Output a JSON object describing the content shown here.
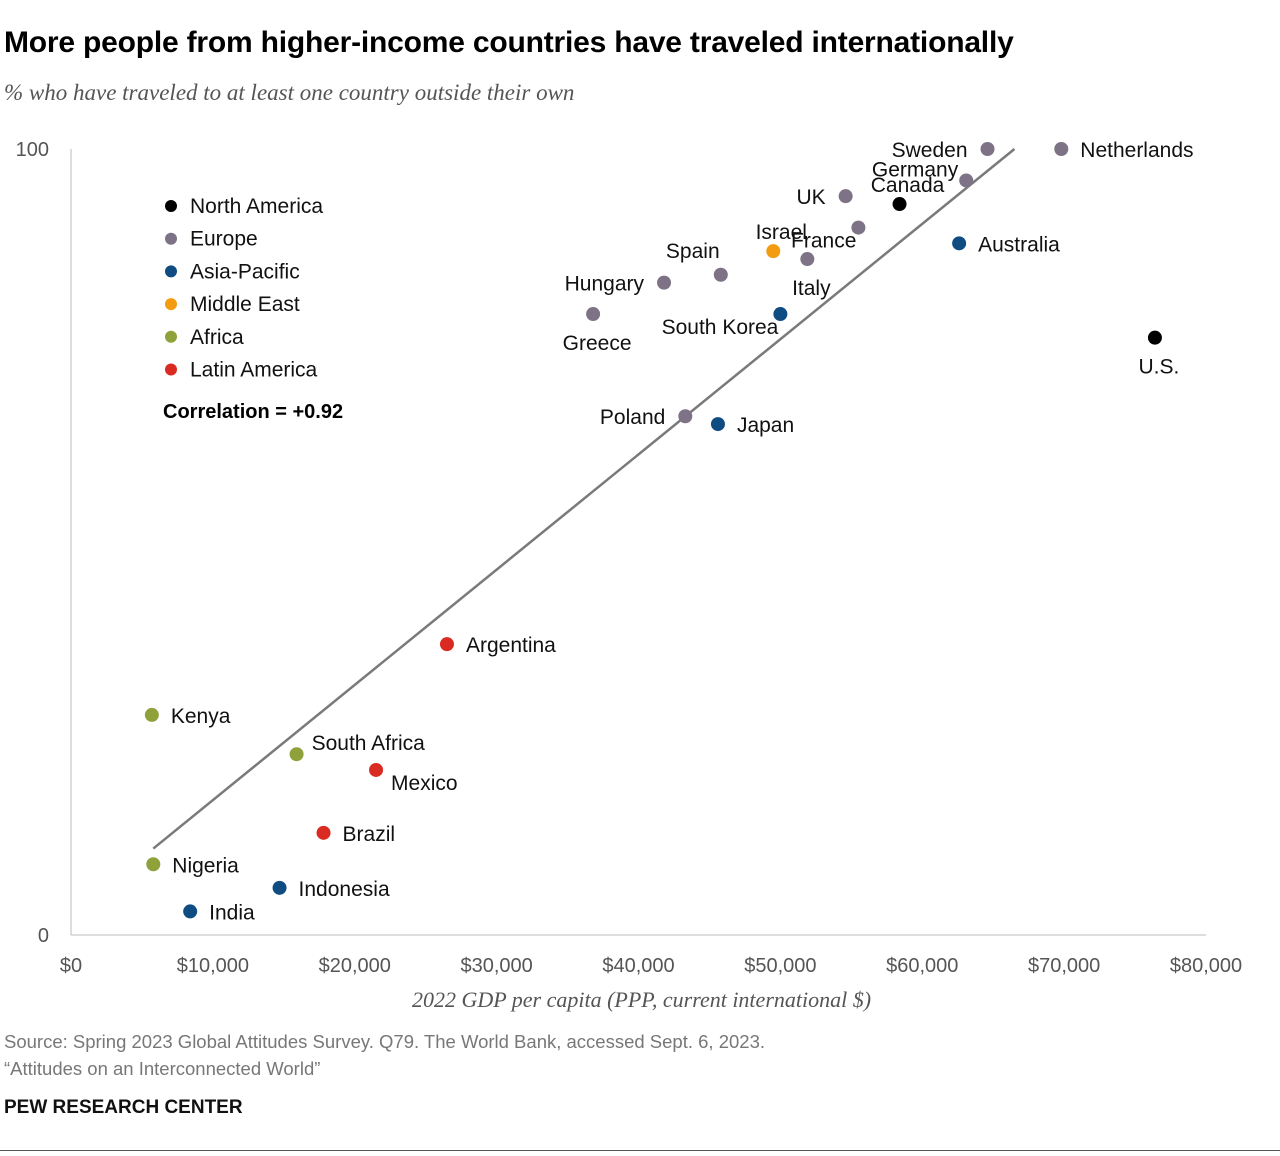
{
  "title": "More people from higher-income countries have traveled internationally",
  "subtitle": "% who have traveled to at least one country outside their own",
  "footer": {
    "source": "Source: Spring 2023 Global Attitudes Survey. Q79. The World Bank, accessed Sept. 6, 2023.",
    "report": "“Attitudes on an Interconnected World”",
    "brand": "PEW RESEARCH CENTER"
  },
  "chart_data": {
    "type": "scatter",
    "xlabel": "2022 GDP per capita (PPP, current international $)",
    "ylabel": "",
    "xlim": [
      0,
      80000
    ],
    "ylim": [
      0,
      100
    ],
    "x_ticks": [
      {
        "value": 0,
        "label": "$0"
      },
      {
        "value": 10000,
        "label": "$10,000"
      },
      {
        "value": 20000,
        "label": "$20,000"
      },
      {
        "value": 30000,
        "label": "$30,000"
      },
      {
        "value": 40000,
        "label": "$40,000"
      },
      {
        "value": 50000,
        "label": "$50,000"
      },
      {
        "value": 60000,
        "label": "$60,000"
      },
      {
        "value": 70000,
        "label": "$70,000"
      },
      {
        "value": 80000,
        "label": "$80,000"
      }
    ],
    "y_ticks": [
      {
        "value": 0,
        "label": "0"
      },
      {
        "value": 100,
        "label": "100"
      }
    ],
    "annotation": "Correlation = +0.92",
    "legend": {
      "placement": "top-left",
      "entries": [
        {
          "region": "North America",
          "label": "North America",
          "color": "#000000"
        },
        {
          "region": "Europe",
          "label": "Europe",
          "color": "#7d7286"
        },
        {
          "region": "Asia-Pacific",
          "label": "Asia-Pacific",
          "color": "#0f4c81"
        },
        {
          "region": "Middle East",
          "label": "Middle East",
          "color": "#f39c12"
        },
        {
          "region": "Africa",
          "label": "Africa",
          "color": "#8fa13a"
        },
        {
          "region": "Latin America",
          "label": "Latin America",
          "color": "#d92b21"
        }
      ]
    },
    "trendline": {
      "x": [
        5800,
        66500
      ],
      "y": [
        11,
        100
      ]
    },
    "points": [
      {
        "name": "Netherlands",
        "region": "Europe",
        "x": 69800,
        "y": 100,
        "label_pos": "right"
      },
      {
        "name": "Sweden",
        "region": "Europe",
        "x": 64600,
        "y": 100,
        "label_pos": "left"
      },
      {
        "name": "Germany",
        "region": "Europe",
        "x": 63100,
        "y": 96,
        "label_pos": "left-up"
      },
      {
        "name": "Canada",
        "region": "North America",
        "x": 58400,
        "y": 93,
        "label_pos": "up"
      },
      {
        "name": "UK",
        "region": "Europe",
        "x": 54600,
        "y": 94,
        "label_pos": "left"
      },
      {
        "name": "France",
        "region": "Europe",
        "x": 55500,
        "y": 90,
        "label_pos": "left-down"
      },
      {
        "name": "Australia",
        "region": "Asia-Pacific",
        "x": 62600,
        "y": 88,
        "label_pos": "right"
      },
      {
        "name": "Israel",
        "region": "Middle East",
        "x": 49500,
        "y": 87,
        "label_pos": "up"
      },
      {
        "name": "Italy",
        "region": "Europe",
        "x": 51900,
        "y": 86,
        "label_pos": "down"
      },
      {
        "name": "Spain",
        "region": "Europe",
        "x": 45800,
        "y": 84,
        "label_pos": "up-left"
      },
      {
        "name": "Hungary",
        "region": "Europe",
        "x": 41800,
        "y": 83,
        "label_pos": "left"
      },
      {
        "name": "Greece",
        "region": "Europe",
        "x": 36800,
        "y": 79,
        "label_pos": "down"
      },
      {
        "name": "South Korea",
        "region": "Asia-Pacific",
        "x": 50000,
        "y": 79,
        "label_pos": "left-down"
      },
      {
        "name": "U.S.",
        "region": "North America",
        "x": 76400,
        "y": 76,
        "label_pos": "down"
      },
      {
        "name": "Poland",
        "region": "Europe",
        "x": 43300,
        "y": 66,
        "label_pos": "left"
      },
      {
        "name": "Japan",
        "region": "Asia-Pacific",
        "x": 45600,
        "y": 65,
        "label_pos": "right"
      },
      {
        "name": "Argentina",
        "region": "Latin America",
        "x": 26500,
        "y": 37,
        "label_pos": "right"
      },
      {
        "name": "Kenya",
        "region": "Africa",
        "x": 5700,
        "y": 28,
        "label_pos": "right"
      },
      {
        "name": "South Africa",
        "region": "Africa",
        "x": 15900,
        "y": 23,
        "label_pos": "right-up"
      },
      {
        "name": "Mexico",
        "region": "Latin America",
        "x": 21500,
        "y": 21,
        "label_pos": "right-down"
      },
      {
        "name": "Brazil",
        "region": "Latin America",
        "x": 17800,
        "y": 13,
        "label_pos": "right"
      },
      {
        "name": "Nigeria",
        "region": "Africa",
        "x": 5800,
        "y": 9,
        "label_pos": "right"
      },
      {
        "name": "Indonesia",
        "region": "Asia-Pacific",
        "x": 14700,
        "y": 6,
        "label_pos": "right"
      },
      {
        "name": "India",
        "region": "Asia-Pacific",
        "x": 8400,
        "y": 3,
        "label_pos": "right"
      }
    ]
  }
}
